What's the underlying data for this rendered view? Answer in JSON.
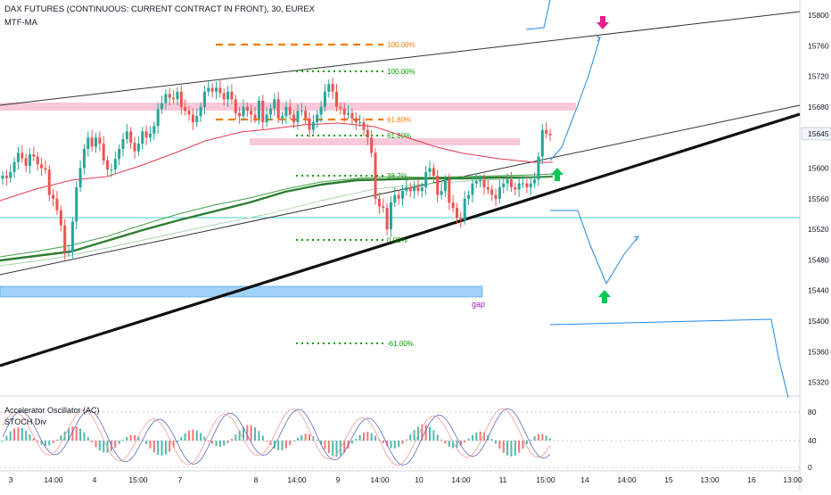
{
  "header": {
    "title": "DAX FUTURES (CONTINUOUS: CURRENT CONTRACT IN FRONT), 30, EUREX",
    "indicator": "MTF-MA"
  },
  "oscillator": {
    "label1": "Accelerator Oscillator (AC)",
    "label2": "STOCH Div"
  },
  "chart_data": {
    "type": "candlestick",
    "price_axis": {
      "ticks": [
        15800,
        15760,
        15720,
        15680,
        15645,
        15600,
        15560,
        15520,
        15480,
        15440,
        15400,
        15360,
        15320
      ],
      "current_price": 15645
    },
    "x_axis": {
      "tick_labels": [
        "3",
        "14:00",
        "4",
        "15:00",
        "7",
        "8",
        "14:00",
        "9",
        "14:00",
        "10",
        "14:00",
        "11",
        "15:00",
        "14",
        "14:00",
        "15",
        "13:00",
        "16",
        "13:00"
      ]
    },
    "fib_levels": [
      {
        "label": "100.00%",
        "color": "#f57c00"
      },
      {
        "label": "61.80%",
        "color": "#f57c00"
      },
      {
        "label": "100.00%",
        "color": "#00a000"
      },
      {
        "label": "61.80%",
        "color": "#00a000"
      },
      {
        "label": "38.2%",
        "color": "#00a000"
      },
      {
        "label": "0.00%",
        "color": "#00a000"
      },
      {
        "label": "-61.00%",
        "color": "#00a000"
      }
    ],
    "annotations": {
      "gap": "gap"
    },
    "oscillator_axis": {
      "ticks": [
        80,
        40,
        0
      ]
    }
  }
}
